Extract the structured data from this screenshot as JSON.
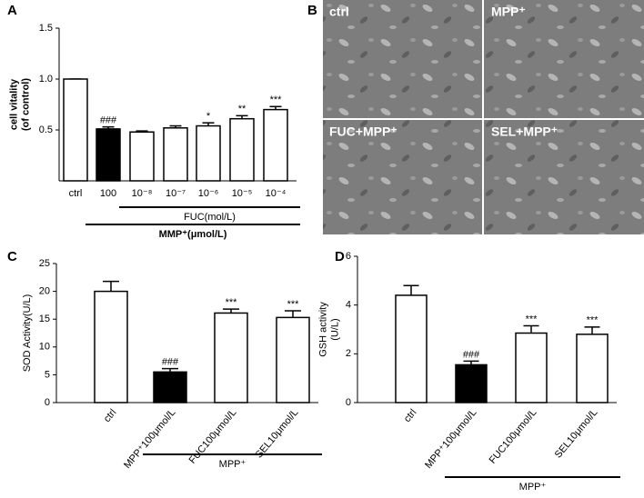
{
  "chart_data": [
    {
      "type": "bar",
      "panel_label": "A",
      "ylabel": [
        "cell vitality",
        "(of control)"
      ],
      "categories": [
        "ctrl",
        "100",
        "10⁻⁸",
        "10⁻⁷",
        "10⁻⁶",
        "10⁻⁵",
        "10⁻⁴"
      ],
      "values": [
        1.0,
        0.51,
        0.48,
        0.52,
        0.54,
        0.61,
        0.7
      ],
      "errors": [
        0,
        0.02,
        0.01,
        0.02,
        0.03,
        0.03,
        0.03
      ],
      "annotations": [
        null,
        "###",
        null,
        null,
        "*",
        "**",
        "***"
      ],
      "colors": [
        "#ffffff",
        "#000000",
        "#ffffff",
        "#ffffff",
        "#ffffff",
        "#ffffff",
        "#ffffff"
      ],
      "group_labels": [
        "FUC(mol/L)",
        "MMP⁺(μmol/L)"
      ],
      "ylim": [
        0,
        1.5
      ],
      "yticks": [
        {
          "value": 0.5,
          "label": "0.5"
        },
        {
          "value": 1,
          "label": "1.0"
        },
        1.5
      ]
    },
    {
      "type": "bar",
      "panel_label": "C",
      "ylabel": [
        "SOD Activity(U/L)"
      ],
      "categories": [
        "ctrl",
        "MPP⁺100μmol/L",
        "FUC100μmol/L",
        "SEL10μmol/L"
      ],
      "values": [
        20,
        5.5,
        16.1,
        15.3
      ],
      "errors": [
        1.8,
        0.6,
        0.7,
        1.2
      ],
      "annotations": [
        null,
        "###",
        "***",
        "***"
      ],
      "colors": [
        "#ffffff",
        "#000000",
        "#ffffff",
        "#ffffff"
      ],
      "group_labels": [
        "MPP⁺"
      ],
      "ylim": [
        0,
        25
      ],
      "yticks": [
        0,
        5,
        10,
        15,
        20,
        25
      ]
    },
    {
      "type": "bar",
      "panel_label": "D",
      "ylabel": [
        "GSH activity",
        "(U/L)"
      ],
      "categories": [
        "ctrl",
        "MPP⁺100μmol/L",
        "FUC100μmol/L",
        "SEL10μmol/L"
      ],
      "values": [
        4.4,
        1.55,
        2.85,
        2.8
      ],
      "errors": [
        0.4,
        0.15,
        0.3,
        0.3
      ],
      "annotations": [
        null,
        "###",
        "***",
        "***"
      ],
      "colors": [
        "#ffffff",
        "#000000",
        "#ffffff",
        "#ffffff"
      ],
      "group_labels": [
        "MPP⁺"
      ],
      "ylim": [
        0,
        6
      ],
      "yticks": [
        0,
        2,
        4,
        6
      ]
    }
  ],
  "panel_b": {
    "panel_label": "B",
    "images": [
      "ctrl",
      "MPP⁺",
      "FUC+MPP⁺",
      "SEL+MPP⁺"
    ]
  }
}
